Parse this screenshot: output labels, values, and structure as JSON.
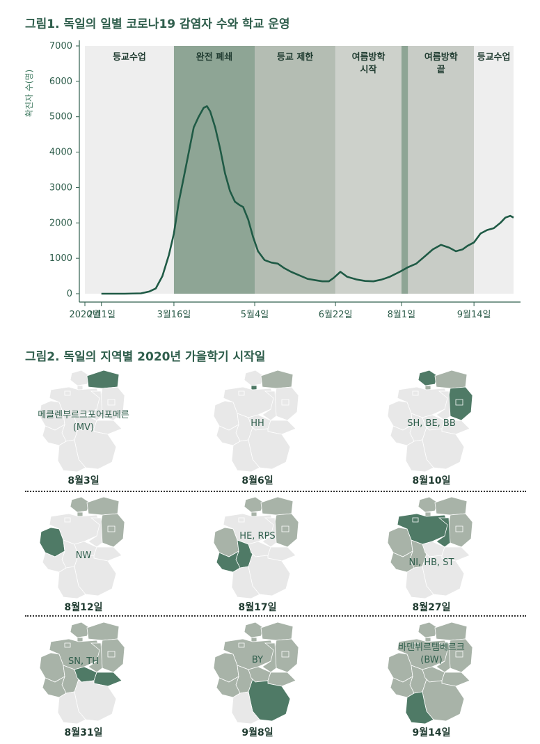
{
  "figure1": {
    "title": "그림1. 독일의 일별 코로나19 감염자 수와 학교 운영",
    "chart_data": {
      "type": "line",
      "ylabel": "확진자 수(명)",
      "ylim": [
        0,
        7000
      ],
      "yticks": [
        "0",
        "1000",
        "2000",
        "3000",
        "4000",
        "5000",
        "6000",
        "7000"
      ],
      "xlim": [
        "2020-01-22",
        "2020-10-08"
      ],
      "xticks": [
        {
          "date": "2020-01-22",
          "label": "2020년"
        },
        {
          "date": "2020-02-01",
          "label": "2월1일"
        },
        {
          "date": "2020-03-16",
          "label": "3월16일"
        },
        {
          "date": "2020-05-04",
          "label": "5월4일"
        },
        {
          "date": "2020-06-22",
          "label": "6월22일"
        },
        {
          "date": "2020-08-01",
          "label": "8월1일"
        },
        {
          "date": "2020-09-14",
          "label": "9월14일"
        }
      ],
      "phases": [
        {
          "start": "2020-01-22",
          "end": "2020-03-16",
          "label": "등교수업",
          "color": "#eeeeee"
        },
        {
          "start": "2020-03-16",
          "end": "2020-05-04",
          "label": "완전 폐쇄",
          "color": "#8ea595"
        },
        {
          "start": "2020-05-04",
          "end": "2020-06-22",
          "label": "등교 제한",
          "color": "#b4bdb3"
        },
        {
          "start": "2020-06-22",
          "end": "2020-08-01",
          "label": "여름방학\n시작",
          "color": "#cdd1cb"
        },
        {
          "start": "2020-08-01",
          "end": "2020-08-05",
          "label": "",
          "color": "#8ea595"
        },
        {
          "start": "2020-08-05",
          "end": "2020-09-14",
          "label": "여름방학\n끝",
          "color": "#c8ccc6"
        },
        {
          "start": "2020-09-14",
          "end": "2020-10-08",
          "label": "등교수업",
          "color": "#eeeeee"
        }
      ],
      "series": [
        {
          "color": "#1f5a45",
          "points": [
            [
              "2020-02-01",
              0
            ],
            [
              "2020-02-15",
              0
            ],
            [
              "2020-02-25",
              10
            ],
            [
              "2020-03-01",
              60
            ],
            [
              "2020-03-05",
              150
            ],
            [
              "2020-03-09",
              500
            ],
            [
              "2020-03-13",
              1100
            ],
            [
              "2020-03-16",
              1700
            ],
            [
              "2020-03-19",
              2600
            ],
            [
              "2020-03-22",
              3300
            ],
            [
              "2020-03-25",
              4000
            ],
            [
              "2020-03-28",
              4700
            ],
            [
              "2020-03-31",
              5000
            ],
            [
              "2020-04-03",
              5250
            ],
            [
              "2020-04-05",
              5300
            ],
            [
              "2020-04-07",
              5150
            ],
            [
              "2020-04-10",
              4700
            ],
            [
              "2020-04-13",
              4100
            ],
            [
              "2020-04-16",
              3400
            ],
            [
              "2020-04-19",
              2900
            ],
            [
              "2020-04-22",
              2600
            ],
            [
              "2020-04-25",
              2500
            ],
            [
              "2020-04-27",
              2450
            ],
            [
              "2020-04-30",
              2100
            ],
            [
              "2020-05-03",
              1600
            ],
            [
              "2020-05-06",
              1200
            ],
            [
              "2020-05-10",
              950
            ],
            [
              "2020-05-14",
              880
            ],
            [
              "2020-05-18",
              850
            ],
            [
              "2020-05-22",
              720
            ],
            [
              "2020-05-26",
              620
            ],
            [
              "2020-05-31",
              520
            ],
            [
              "2020-06-05",
              420
            ],
            [
              "2020-06-10",
              380
            ],
            [
              "2020-06-14",
              350
            ],
            [
              "2020-06-18",
              350
            ],
            [
              "2020-06-21",
              450
            ],
            [
              "2020-06-25",
              620
            ],
            [
              "2020-06-29",
              480
            ],
            [
              "2020-07-05",
              400
            ],
            [
              "2020-07-10",
              360
            ],
            [
              "2020-07-15",
              350
            ],
            [
              "2020-07-20",
              400
            ],
            [
              "2020-07-25",
              480
            ],
            [
              "2020-07-31",
              620
            ],
            [
              "2020-08-05",
              750
            ],
            [
              "2020-08-10",
              850
            ],
            [
              "2020-08-15",
              1050
            ],
            [
              "2020-08-20",
              1250
            ],
            [
              "2020-08-25",
              1380
            ],
            [
              "2020-08-30",
              1300
            ],
            [
              "2020-09-03",
              1200
            ],
            [
              "2020-09-07",
              1250
            ],
            [
              "2020-09-10",
              1350
            ],
            [
              "2020-09-14",
              1450
            ],
            [
              "2020-09-18",
              1700
            ],
            [
              "2020-09-22",
              1800
            ],
            [
              "2020-09-26",
              1850
            ],
            [
              "2020-09-30",
              2000
            ],
            [
              "2020-10-03",
              2150
            ],
            [
              "2020-10-06",
              2200
            ],
            [
              "2020-10-08",
              2150
            ]
          ]
        }
      ]
    }
  },
  "figure2": {
    "title": "그림2. 독일의 지역별 2020년 가을학기 시작일",
    "maps": [
      {
        "label": "메클렌부르크포어포메른\n(MV)",
        "date": "8월3일"
      },
      {
        "label": "HH",
        "date": "8월6일"
      },
      {
        "label": "SH, BE, BB",
        "date": "8월10일"
      },
      {
        "label": "NW",
        "date": "8월12일"
      },
      {
        "label": "HE, RPS",
        "date": "8월17일"
      },
      {
        "label": "NI, HB, ST",
        "date": "8월27일"
      },
      {
        "label": "SN, TH",
        "date": "8월31일"
      },
      {
        "label": "BY",
        "date": "9월8일"
      },
      {
        "label": "바덴뷔르템베르크\n(BW)",
        "date": "9월14일"
      }
    ]
  },
  "colors": {
    "map_base": "#e8e8e8",
    "map_started": "#a8b3a8",
    "map_current": "#4f7a66",
    "axis": "#2f5e4c"
  }
}
